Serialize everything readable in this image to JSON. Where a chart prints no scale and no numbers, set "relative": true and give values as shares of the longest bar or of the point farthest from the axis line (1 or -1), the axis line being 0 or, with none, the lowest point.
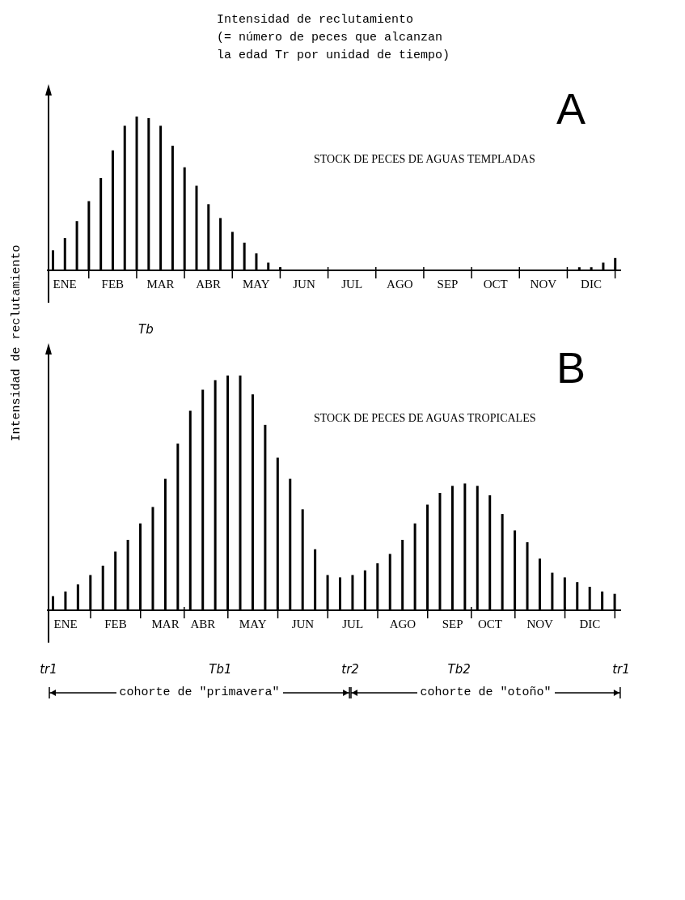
{
  "chart_data": [
    {
      "type": "bar",
      "relative": true,
      "title": "Intensidad de reclutamiento\n(= número de peces que alcanzan\nla edad Tr por unidad de tiempo)",
      "ylabel": "Intensidad de reclutamiento",
      "color": "#000000",
      "categories": [
        null,
        "ENE",
        null,
        null,
        null,
        "FEB",
        null,
        null,
        null,
        "MAR",
        null,
        null,
        null,
        "ABR",
        null,
        null,
        null,
        "MAY",
        null,
        null,
        null,
        "JUN",
        null,
        null,
        null,
        "JUL",
        null,
        null,
        null,
        "AGO",
        null,
        null,
        null,
        "SEP",
        null,
        null,
        null,
        "OCT",
        null,
        null,
        null,
        "NOV",
        null,
        null,
        null,
        "DIC",
        null,
        null
      ],
      "values": [
        0.13,
        0.21,
        0.32,
        0.45,
        0.6,
        0.78,
        0.94,
        1,
        0.99,
        0.94,
        0.81,
        0.67,
        0.55,
        0.43,
        0.34,
        0.25,
        0.18,
        0.11,
        0.05,
        0.02,
        null,
        null,
        null,
        null,
        null,
        null,
        null,
        null,
        null,
        null,
        null,
        null,
        null,
        null,
        null,
        null,
        null,
        null,
        null,
        null,
        null,
        null,
        null,
        null,
        0.02,
        0.02,
        0.05,
        0.08
      ],
      "annotations": [
        "A",
        "STOCK DE PECES DE AGUAS TEMPLADAS",
        "Tb"
      ]
    },
    {
      "type": "bar",
      "relative": true,
      "color": "#000000",
      "categories": [
        null,
        "ENE",
        null,
        null,
        null,
        "FEB",
        null,
        null,
        null,
        "MAR",
        null,
        null,
        "ABR",
        null,
        null,
        null,
        "MAY",
        null,
        null,
        null,
        "JUN",
        null,
        null,
        null,
        "JUL",
        null,
        null,
        null,
        "AGO",
        null,
        null,
        null,
        "SEP",
        null,
        null,
        "OCT",
        null,
        null,
        null,
        "NOV",
        null,
        null,
        null,
        "DIC",
        null,
        null
      ],
      "values": [
        0.06,
        0.08,
        0.11,
        0.15,
        0.19,
        0.25,
        0.3,
        0.37,
        0.44,
        0.56,
        0.71,
        0.85,
        0.94,
        0.98,
        1,
        1,
        0.92,
        0.79,
        0.65,
        0.56,
        0.43,
        0.26,
        0.15,
        0.14,
        0.15,
        0.17,
        0.2,
        0.24,
        0.3,
        0.37,
        0.45,
        0.5,
        0.53,
        0.54,
        0.53,
        0.49,
        0.41,
        0.34,
        0.29,
        0.22,
        0.16,
        0.14,
        0.12,
        0.1,
        0.08,
        0.07
      ],
      "annotations": [
        "B",
        "STOCK DE PECES DE AGUAS TROPICALES",
        "cohorte de \"primavera\"",
        "cohorte de \"otoño\"",
        "tr1",
        "Tb1",
        "tr2",
        "Tb2",
        "tr1"
      ]
    }
  ]
}
